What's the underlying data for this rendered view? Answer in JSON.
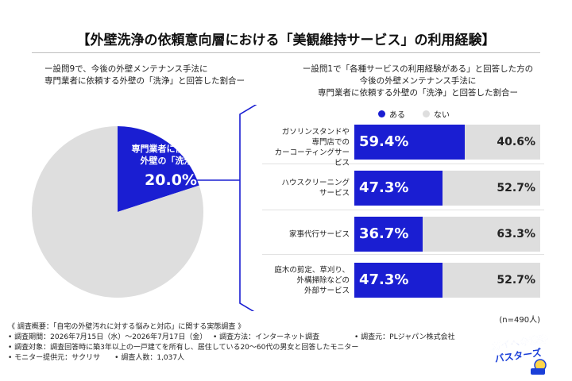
{
  "title": "【外壁洗浄の依頼意向層における「美観維持サービス」の利用経験】",
  "left_subtitle": [
    "ー設問9で、今後の外壁メンテナンス手法に",
    "専門業者に依頼する外壁の「洗浄」と回答した割合ー"
  ],
  "right_subtitle": [
    "ー設問1で「各種サービスの利用経験がある」と回答した方の",
    "今後の外壁メンテナンス手法に",
    "専門業者に依頼する外壁の「洗浄」と回答した割合ー"
  ],
  "pie": {
    "label_line1": "専門業者に依頼する",
    "label_line2": "外壁の「洗浄」",
    "value_label": "20.0%"
  },
  "chart_data": [
    {
      "type": "pie",
      "slices": [
        {
          "label": "専門業者に依頼する外壁の「洗浄」",
          "value": 20.0,
          "color": "#1a1ed2"
        },
        {
          "label": "",
          "value": 80.0,
          "color": "#dedede"
        }
      ]
    },
    {
      "type": "bar",
      "orientation": "horizontal-stacked",
      "legend": [
        "ある",
        "ない"
      ],
      "legend_position": "top",
      "categories": [
        [
          "ガソリンスタンドや",
          "専門店での",
          "カーコーティングサービス"
        ],
        [
          "ハウスクリーニング",
          "サービス"
        ],
        [
          "家事代行サービス"
        ],
        [
          "庭木の剪定、草刈り、",
          "外構掃除などの",
          "外部サービス"
        ]
      ],
      "series": [
        {
          "name": "ある",
          "values": [
            59.4,
            47.3,
            36.7,
            47.3
          ],
          "labels": [
            "59.4%",
            "47.3%",
            "36.7%",
            "47.3%"
          ],
          "color": "#1a1ed2"
        },
        {
          "name": "ない",
          "values": [
            40.6,
            52.7,
            63.3,
            52.7
          ],
          "labels": [
            "40.6%",
            "52.7%",
            "63.3%",
            "52.7%"
          ],
          "color": "#dedede"
        }
      ],
      "xlim": [
        0,
        100
      ]
    }
  ],
  "n_count": "(n=490人)",
  "footnotes": {
    "overview": "《 調査概要：「自宅の外壁汚れに対する悩みと対応」に関する実態調査 》",
    "period": "• 調査期間：2026年7月15日（水）〜2026年7月17日（金）",
    "method": "• 調査方法：インターネット調査",
    "source": "• 調査元：PLジャパン株式会社",
    "target": "• 調査対象：調査回答時に築3年以上の一戸建てを所有し、居住している20〜60代の男女と回答したモニター",
    "provider": "• モニター提供元：サクリサ",
    "count": "• 調査人数：1,037人"
  },
  "logo": {
    "line1": "ガイヘキ洗浄",
    "line2": "バスターズ"
  }
}
